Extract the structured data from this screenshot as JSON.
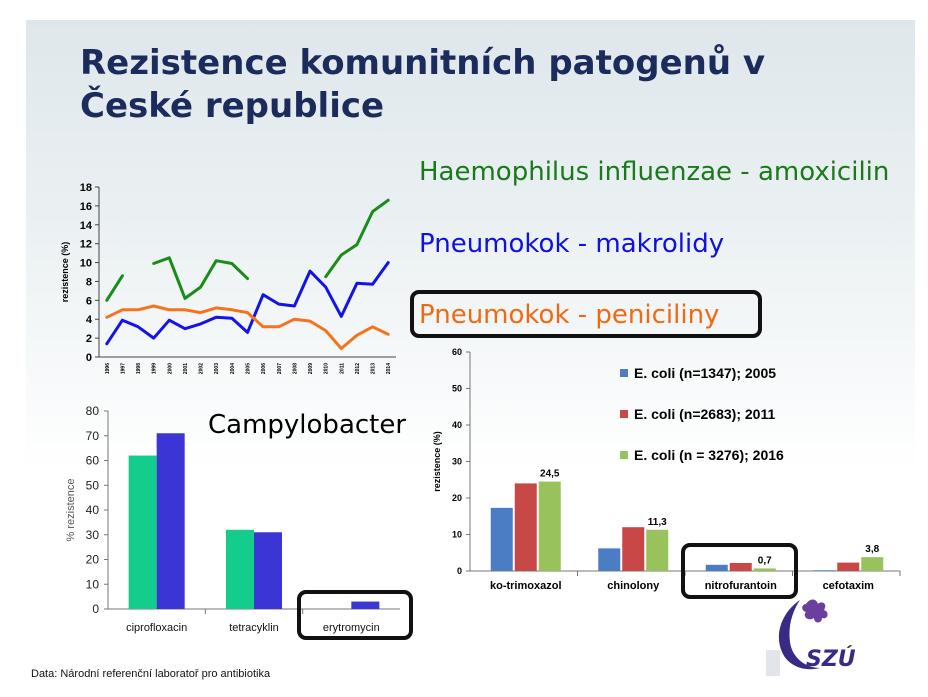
{
  "slide": {
    "title_line1": "Rezistence komunitních patogenů v",
    "title_line2": "České republice",
    "footer": "Data: Národní  referenční laboratoř pro antibiotika",
    "logo_text": "SZÚ",
    "colors": {
      "title": "#1b2c5c",
      "green": "#1a7a1a",
      "blue": "#1010e0",
      "orange": "#f06a14"
    }
  },
  "labels": {
    "haemophilus": "Haemophilus influenzae - amoxicilin",
    "pneumo_makrolidy": "Pneumokok - makrolidy",
    "pneumo_peniciliny": "Pneumokok - peniciliny",
    "campylobacter": "Campylobacter"
  },
  "chart_data": [
    {
      "id": "trend",
      "type": "line",
      "ylabel": "rezistence (%)",
      "ylim": [
        0,
        18
      ],
      "yticks": [
        0,
        2,
        4,
        6,
        8,
        10,
        12,
        14,
        16,
        18
      ],
      "x": [
        "1996",
        "1997",
        "1998",
        "1999",
        "2000",
        "2001",
        "2002",
        "2003",
        "2004",
        "2005",
        "2006",
        "2007",
        "2008",
        "2009",
        "2010",
        "2011",
        "2012",
        "2013",
        "2014"
      ],
      "series": [
        {
          "name": "Haemophilus influenzae - amoxicilin",
          "color": "#1a8c1a",
          "values": [
            6.0,
            8.6,
            null,
            9.9,
            10.5,
            6.2,
            7.4,
            10.2,
            9.9,
            8.3,
            null,
            null,
            null,
            null,
            8.5,
            10.8,
            11.9,
            15.4,
            16.6
          ]
        },
        {
          "name": "Pneumokok - makrolidy",
          "color": "#1414e6",
          "values": [
            1.4,
            3.9,
            3.2,
            2.0,
            3.9,
            3.0,
            3.5,
            4.2,
            4.1,
            2.6,
            6.6,
            5.6,
            5.4,
            9.1,
            7.4,
            4.3,
            7.8,
            7.7,
            10.0
          ]
        },
        {
          "name": "Pneumokok - peniciliny",
          "color": "#f5731c",
          "values": [
            4.2,
            5.0,
            5.0,
            5.4,
            5.0,
            5.0,
            4.7,
            5.2,
            5.0,
            4.7,
            3.2,
            3.2,
            4.0,
            3.8,
            2.8,
            0.9,
            2.3,
            3.2,
            2.4
          ]
        }
      ]
    },
    {
      "id": "campylobacter",
      "type": "bar",
      "ylabel": "% rezistence",
      "ylim": [
        0,
        80
      ],
      "yticks": [
        0,
        10,
        20,
        30,
        40,
        50,
        60,
        70,
        80
      ],
      "categories": [
        "ciprofloxacin",
        "tetracyklin",
        "erytromycin"
      ],
      "series": [
        {
          "color": "#14cc8c",
          "values": [
            62,
            32,
            0
          ]
        },
        {
          "color": "#3a35d4",
          "values": [
            71,
            31,
            3
          ]
        }
      ]
    },
    {
      "id": "ecoli",
      "type": "bar",
      "ylabel": "rezistence (%)",
      "ylim": [
        0,
        60
      ],
      "yticks": [
        0,
        10,
        20,
        30,
        40,
        50,
        60
      ],
      "categories": [
        "ko-trimoxazol",
        "chinolony",
        "nitrofurantoin",
        "cefotaxim"
      ],
      "series": [
        {
          "name": "E. coli (n=1347); 2005",
          "color": "#4a7dc4",
          "values": [
            17.3,
            6.2,
            1.7,
            0.2
          ]
        },
        {
          "name": "E. coli (n=2683); 2011",
          "color": "#c84848",
          "values": [
            24.0,
            12.0,
            2.2,
            2.3
          ]
        },
        {
          "name": "E. coli (n = 3276); 2016",
          "color": "#98c25c",
          "values": [
            24.5,
            11.3,
            0.7,
            3.8
          ]
        }
      ],
      "data_labels": [
        "24,5",
        "11,3",
        "0,7",
        "3,8"
      ]
    }
  ]
}
